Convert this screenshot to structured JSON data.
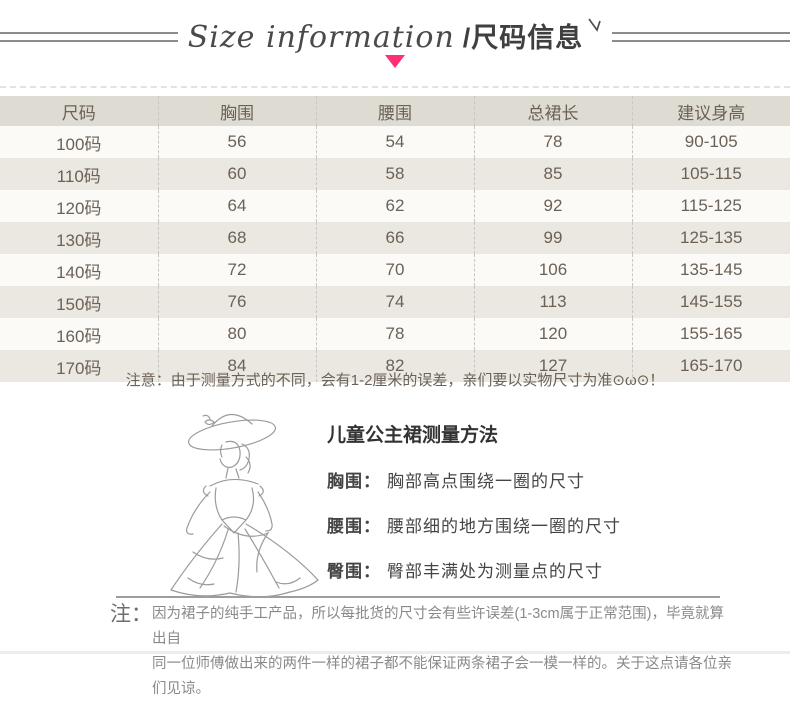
{
  "header": {
    "title_en": "Size information",
    "title_zh": "/尺码信息",
    "accent_color": "#ff2e75",
    "line_color": "#8c8c8c"
  },
  "size_table": {
    "columns": [
      "尺码",
      "胸围",
      "腰围",
      "总裙长",
      "建议身高"
    ],
    "rows": [
      [
        "100码",
        "56",
        "54",
        "78",
        "90-105"
      ],
      [
        "110码",
        "60",
        "58",
        "85",
        "105-115"
      ],
      [
        "120码",
        "64",
        "62",
        "92",
        "115-125"
      ],
      [
        "130码",
        "68",
        "66",
        "99",
        "125-135"
      ],
      [
        "140码",
        "72",
        "70",
        "106",
        "135-145"
      ],
      [
        "150码",
        "76",
        "74",
        "113",
        "145-155"
      ],
      [
        "160码",
        "80",
        "78",
        "120",
        "155-165"
      ],
      [
        "170码",
        "84",
        "82",
        "127",
        "165-170"
      ]
    ],
    "header_bg": "#dedbd3",
    "row_alt_bg": "#ebe8e2",
    "note": "注意：由于测量方式的不同，会有1-2厘米的误差，亲们要以实物尺寸为准⊙ω⊙！"
  },
  "chart_data": {
    "type": "table",
    "title": "尺码信息",
    "categories": [
      "尺码",
      "胸围",
      "腰围",
      "总裙长",
      "建议身高"
    ],
    "series": [
      {
        "name": "100码",
        "values": [
          56,
          54,
          78,
          "90-105"
        ]
      },
      {
        "name": "110码",
        "values": [
          60,
          58,
          85,
          "105-115"
        ]
      },
      {
        "name": "120码",
        "values": [
          64,
          62,
          92,
          "115-125"
        ]
      },
      {
        "name": "130码",
        "values": [
          68,
          66,
          99,
          "125-135"
        ]
      },
      {
        "name": "140码",
        "values": [
          72,
          70,
          106,
          "135-145"
        ]
      },
      {
        "name": "150码",
        "values": [
          76,
          74,
          113,
          "145-155"
        ]
      },
      {
        "name": "160码",
        "values": [
          80,
          78,
          120,
          "155-165"
        ]
      },
      {
        "name": "170码",
        "values": [
          84,
          82,
          127,
          "165-170"
        ]
      }
    ]
  },
  "measurement_guide": {
    "title": "儿童公主裙测量方法",
    "items": [
      {
        "label": "胸围：",
        "desc": "胸部高点围绕一圈的尺寸"
      },
      {
        "label": "腰围：",
        "desc": "腰部细的地方围绕一圈的尺寸"
      },
      {
        "label": "臀围：",
        "desc": "臀部丰满处为测量点的尺寸"
      }
    ],
    "illustration": "princess-line-art"
  },
  "footnote": {
    "label": "注：",
    "line1": "因为裙子的纯手工产品，所以每批货的尺寸会有些许误差(1-3cm属于正常范围)，毕竟就算出自",
    "line2": "同一位师傅做出来的两件一样的裙子都不能保证两条裙子会一模一样的。关于这点请各位亲们见谅。"
  }
}
